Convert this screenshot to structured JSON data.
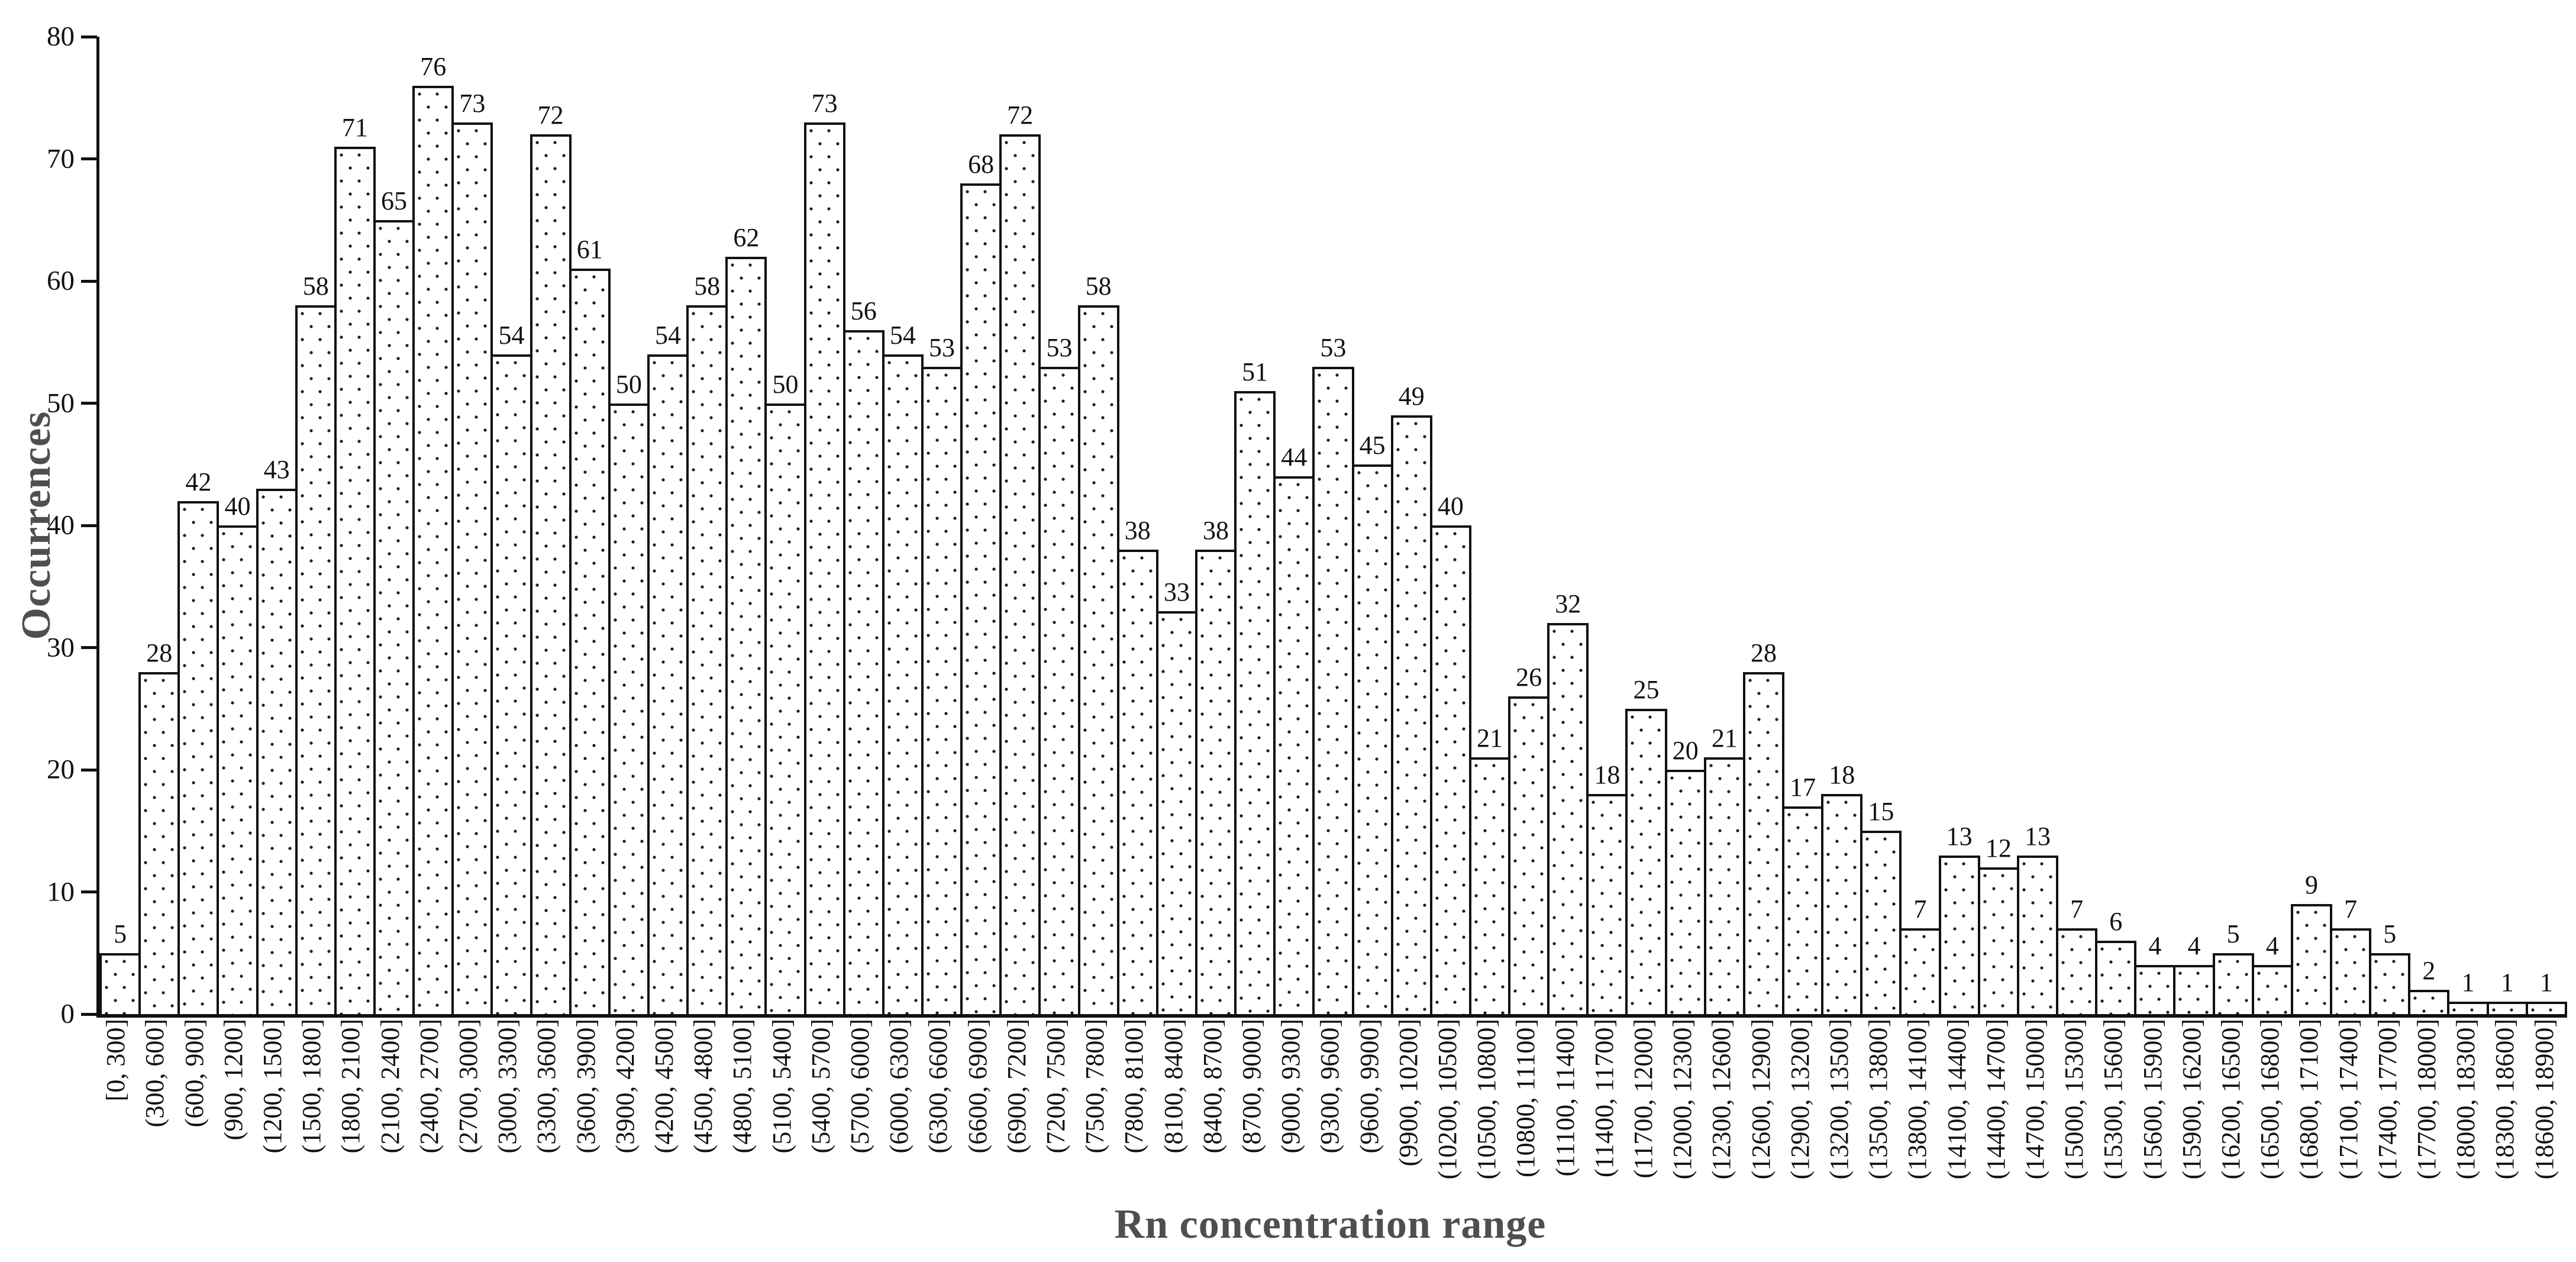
{
  "figure": {
    "background": "#ffffff"
  },
  "colors": {
    "axis": "#111111",
    "tick_text": "#111111",
    "bar_edge": "#111111",
    "bar_fill": "#ffffff",
    "bar_pattern_dot": "#1a1a1a",
    "axis_title_text": "#4f4f4f"
  },
  "chart_data": {
    "type": "bar",
    "subtype": "histogram",
    "title": "",
    "xlabel": "Rn concentration range",
    "ylabel": "Occurrences",
    "ylim": [
      0,
      80
    ],
    "yticks": [
      "0",
      "10",
      "20",
      "30",
      "40",
      "50",
      "60",
      "70",
      "80"
    ],
    "grid": false,
    "legend_position": "none",
    "bar_value_labels_shown": true,
    "bar_fill_pattern": "dots",
    "categories": [
      "[0, 300]",
      "(300, 600]",
      "(600, 900]",
      "(900, 1200]",
      "(1200, 1500]",
      "(1500, 1800]",
      "(1800, 2100]",
      "(2100, 2400]",
      "(2400, 2700]",
      "(2700, 3000]",
      "(3000, 3300]",
      "(3300, 3600]",
      "(3600, 3900]",
      "(3900, 4200]",
      "(4200, 4500]",
      "(4500, 4800]",
      "(4800, 5100]",
      "(5100, 5400]",
      "(5400, 5700]",
      "(5700, 6000]",
      "(6000, 6300]",
      "(6300, 6600]",
      "(6600, 6900]",
      "(6900, 7200]",
      "(7200, 7500]",
      "(7500, 7800]",
      "(7800, 8100]",
      "(8100, 8400]",
      "(8400, 8700]",
      "(8700, 9000]",
      "(9000, 9300]",
      "(9300, 9600]",
      "(9600, 9900]",
      "(9900, 10200]",
      "(10200, 10500]",
      "(10500, 10800]",
      "(10800, 11100]",
      "(11100, 11400]",
      "(11400, 11700]",
      "(11700, 12000]",
      "(12000, 12300]",
      "(12300, 12600]",
      "(12600, 12900]",
      "(12900, 13200]",
      "(13200, 13500]",
      "(13500, 13800]",
      "(13800, 14100]",
      "(14100, 14400]",
      "(14400, 14700]",
      "(14700, 15000]",
      "(15000, 15300]",
      "(15300, 15600]",
      "(15600, 15900]",
      "(15900, 16200]",
      "(16200, 16500]",
      "(16500, 16800]",
      "(16800, 17100]",
      "(17100, 17400]",
      "(17400, 17700]",
      "(17700, 18000]",
      "(18000, 18300]",
      "(18300, 18600]",
      "(18600, 18900]"
    ],
    "values": [
      5,
      28,
      42,
      40,
      43,
      58,
      71,
      65,
      76,
      73,
      54,
      72,
      61,
      50,
      54,
      58,
      62,
      50,
      73,
      56,
      54,
      53,
      68,
      72,
      53,
      58,
      38,
      33,
      38,
      51,
      44,
      53,
      45,
      49,
      40,
      21,
      26,
      32,
      18,
      25,
      20,
      21,
      28,
      17,
      18,
      15,
      7,
      13,
      12,
      13,
      7,
      6,
      4,
      4,
      5,
      4,
      9,
      7,
      5,
      2,
      1,
      1,
      1
    ]
  }
}
